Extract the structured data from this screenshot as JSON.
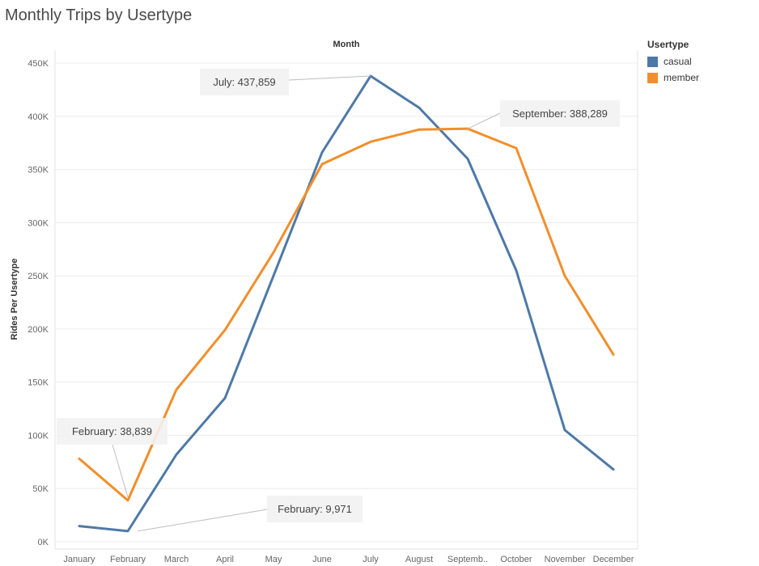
{
  "chart_data": {
    "type": "line",
    "title": "Monthly Trips by Usertype",
    "xlabel": "Month",
    "ylabel": "Rides Per Usertype",
    "categories": [
      "January",
      "February",
      "March",
      "April",
      "May",
      "June",
      "July",
      "August",
      "Septemb..",
      "October",
      "November",
      "December"
    ],
    "y_ticks": [
      0,
      50000,
      100000,
      150000,
      200000,
      250000,
      300000,
      350000,
      400000,
      450000
    ],
    "y_tick_labels": [
      "0K",
      "50K",
      "100K",
      "150K",
      "200K",
      "250K",
      "300K",
      "350K",
      "400K",
      "450K"
    ],
    "ylim": [
      0,
      450000
    ],
    "grid": true,
    "legend_title": "Usertype",
    "legend_position": "top-right",
    "series": [
      {
        "name": "casual",
        "color": "#4e79a7",
        "values": [
          14700,
          9971,
          82000,
          135000,
          250000,
          366000,
          437859,
          408000,
          360000,
          255000,
          105000,
          68000
        ]
      },
      {
        "name": "member",
        "color": "#f28e2b",
        "values": [
          78000,
          38839,
          143000,
          199000,
          272000,
          355000,
          376000,
          387500,
          388289,
          370000,
          250000,
          176000
        ]
      }
    ],
    "annotations": [
      {
        "text": "July: 437,859",
        "series": "casual",
        "index": 6
      },
      {
        "text": "September: 388,289",
        "series": "member",
        "index": 8
      },
      {
        "text": "February: 38,839",
        "series": "member",
        "index": 1
      },
      {
        "text": "February: 9,971",
        "series": "casual",
        "index": 1
      }
    ]
  }
}
